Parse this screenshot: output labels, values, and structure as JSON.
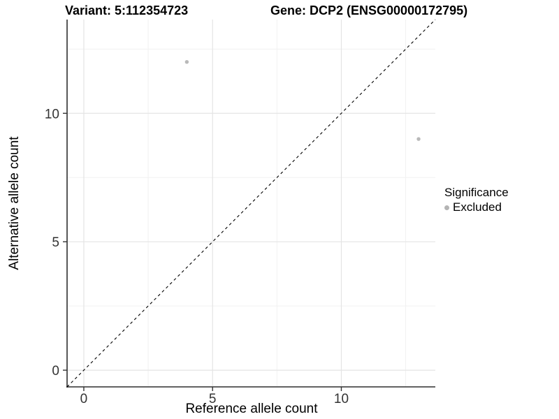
{
  "titles": {
    "variant": "Variant: 5:112354723",
    "gene": "Gene: DCP2 (ENSG00000172795)"
  },
  "chart_data": {
    "type": "scatter",
    "title_left": "Variant: 5:112354723",
    "title_right": "Gene: DCP2 (ENSG00000172795)",
    "xlabel": "Reference allele count",
    "ylabel": "Alternative allele count",
    "xlim": [
      -0.65,
      13.65
    ],
    "ylim": [
      -0.65,
      13.65
    ],
    "x_major_breaks": [
      0,
      5,
      10
    ],
    "y_major_breaks": [
      0,
      5,
      10
    ],
    "x_minor_breaks": [
      2.5,
      7.5,
      12.5
    ],
    "y_minor_breaks": [
      2.5,
      7.5,
      12.5
    ],
    "x_tick_labels": [
      "0",
      "5",
      "10"
    ],
    "y_tick_labels": [
      "0",
      "5",
      "10"
    ],
    "grid": true,
    "points": [
      {
        "x": 4,
        "y": 12,
        "series": "Excluded"
      },
      {
        "x": 13,
        "y": 9,
        "series": "Excluded"
      }
    ],
    "identity_line": {
      "style": "dashed",
      "from": [
        -0.65,
        -0.65
      ],
      "to": [
        13.65,
        13.65
      ]
    },
    "legend": {
      "position": "right",
      "title": "Significance",
      "items": [
        {
          "label": "Excluded",
          "color": "#b4b4b4"
        }
      ]
    }
  },
  "colors": {
    "background": "#ffffff",
    "point": "#b9b9b9",
    "legend_key": "#b0b0b0",
    "grid_major": "#e4e4e4",
    "grid_minor": "#f1f1f1",
    "axis_line": "#2f2f2f",
    "tick_mark": "#333333",
    "tick_label": "#333333",
    "identity_line": "#000000",
    "text": "#000000"
  }
}
